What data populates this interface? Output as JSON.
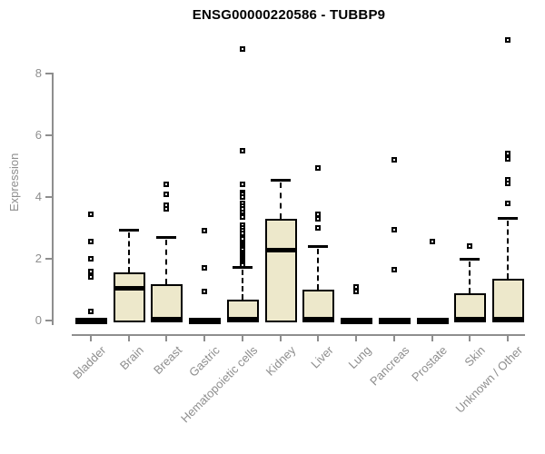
{
  "title": "ENSG00000220586 - TUBBP9",
  "chart_data": {
    "type": "boxplot",
    "title": "ENSG00000220586 - TUBBP9",
    "xlabel": "",
    "ylabel": "Expression",
    "ylim": [
      0,
      9.2
    ],
    "yticks": [
      0,
      2,
      4,
      6,
      8
    ],
    "grid": false,
    "legend": "none",
    "box_fill_color": "#EDE8CB",
    "box_border_color": "#000000",
    "axis_color": "#8e8e8e",
    "label_color": "#8e8e8e",
    "categories": [
      "Bladder",
      "Brain",
      "Breast",
      "Gastric",
      "Hematopoietic cells",
      "Kidney",
      "Liver",
      "Lung",
      "Pancreas",
      "Prostate",
      "Skin",
      "Unknown / Other"
    ],
    "series": [
      {
        "category": "Bladder",
        "collapsed": true,
        "q1": 0,
        "median": 0,
        "q3": 0,
        "whisker_low": 0,
        "whisker_high": 0,
        "outliers": [
          3.45,
          2.55,
          2.0,
          1.6,
          1.4,
          0.3
        ]
      },
      {
        "category": "Brain",
        "collapsed": false,
        "q1": 0,
        "median": 1.05,
        "q3": 1.55,
        "whisker_low": 0,
        "whisker_high": 2.95,
        "outliers": []
      },
      {
        "category": "Breast",
        "collapsed": false,
        "q1": 0,
        "median": 0.05,
        "q3": 1.18,
        "whisker_low": 0,
        "whisker_high": 2.7,
        "outliers": [
          4.4,
          4.1,
          3.75,
          3.62
        ]
      },
      {
        "category": "Gastric",
        "collapsed": true,
        "q1": 0,
        "median": 0,
        "q3": 0,
        "whisker_low": 0,
        "whisker_high": 0,
        "outliers": [
          2.9,
          1.7,
          0.95
        ]
      },
      {
        "category": "Hematopoietic cells",
        "collapsed": false,
        "q1": 0,
        "median": 0.05,
        "q3": 0.68,
        "whisker_low": 0,
        "whisker_high": 1.73,
        "outliers": [
          8.8,
          5.5,
          4.42,
          4.15,
          4.08,
          4.0,
          3.78,
          3.7,
          3.62,
          3.5,
          3.42,
          3.35,
          3.08,
          3.0,
          2.92,
          2.82,
          2.72,
          2.65,
          2.52,
          2.46,
          2.4,
          2.34,
          2.28,
          2.22,
          2.16,
          2.1,
          2.04,
          1.98,
          1.92,
          1.86,
          1.8
        ]
      },
      {
        "category": "Kidney",
        "collapsed": false,
        "q1": 0,
        "median": 2.3,
        "q3": 3.3,
        "whisker_low": 0,
        "whisker_high": 4.57,
        "outliers": []
      },
      {
        "category": "Liver",
        "collapsed": false,
        "q1": 0,
        "median": 0.05,
        "q3": 1.0,
        "whisker_low": 0,
        "whisker_high": 2.4,
        "outliers": [
          4.95,
          3.45,
          3.3,
          3.0
        ]
      },
      {
        "category": "Lung",
        "collapsed": true,
        "q1": 0,
        "median": 0,
        "q3": 0,
        "whisker_low": 0,
        "whisker_high": 0,
        "outliers": [
          1.1,
          0.95
        ]
      },
      {
        "category": "Pancreas",
        "collapsed": true,
        "q1": 0,
        "median": 0,
        "q3": 0,
        "whisker_low": 0,
        "whisker_high": 0,
        "outliers": [
          5.2,
          2.95,
          1.65
        ]
      },
      {
        "category": "Prostate",
        "collapsed": true,
        "q1": 0,
        "median": 0,
        "q3": 0,
        "whisker_low": 0,
        "whisker_high": 0,
        "outliers": [
          2.55
        ]
      },
      {
        "category": "Skin",
        "collapsed": false,
        "q1": 0,
        "median": 0.05,
        "q3": 0.88,
        "whisker_low": 0,
        "whisker_high": 2.0,
        "outliers": [
          2.4
        ]
      },
      {
        "category": "Unknown / Other",
        "collapsed": false,
        "q1": 0,
        "median": 0.05,
        "q3": 1.35,
        "whisker_low": 0,
        "whisker_high": 3.32,
        "outliers": [
          9.1,
          5.4,
          5.25,
          4.55,
          4.45,
          3.8
        ]
      }
    ]
  }
}
